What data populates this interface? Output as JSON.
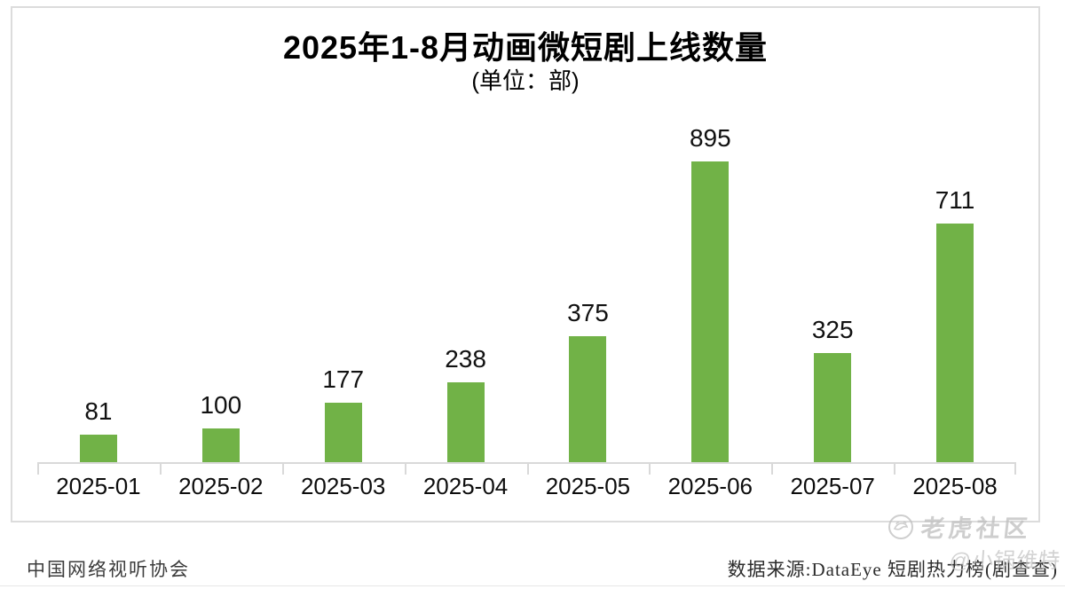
{
  "chart_data": {
    "type": "bar",
    "title": "2025年1-8月动画微短剧上线数量",
    "subtitle": "(单位：部)",
    "categories": [
      "2025-01",
      "2025-02",
      "2025-03",
      "2025-04",
      "2025-05",
      "2025-06",
      "2025-07",
      "2025-08"
    ],
    "values": [
      81,
      100,
      177,
      238,
      375,
      895,
      325,
      711
    ],
    "bar_color": "#71b247",
    "ylim": [
      0,
      950
    ],
    "grid": false,
    "legend_position": "none",
    "value_labels_shown": true
  },
  "footer": {
    "left_source": "中国网络视听协会",
    "right_source": "数据来源:DataEye 短剧热力榜(剧查查)"
  },
  "watermark": {
    "community_name": "老虎社区",
    "user_name": "@小锅维特",
    "logo": "tiger-logo-icon",
    "color": "#c9c9c9"
  }
}
